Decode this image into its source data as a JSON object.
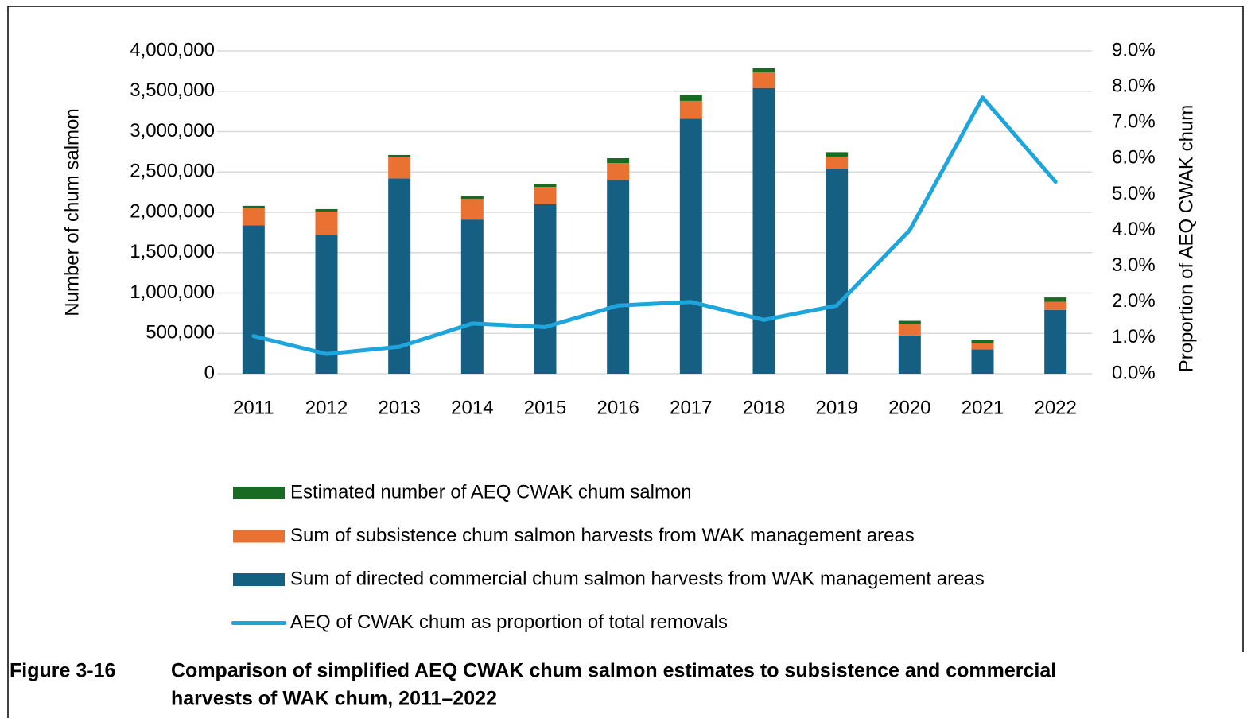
{
  "chart_data": {
    "type": "bar",
    "categories": [
      "2011",
      "2012",
      "2013",
      "2014",
      "2015",
      "2016",
      "2017",
      "2018",
      "2019",
      "2020",
      "2021",
      "2022"
    ],
    "series": [
      {
        "name": "Sum of directed commercial chum salmon harvests from WAK management areas",
        "color": "#156082",
        "values": [
          1840000,
          1720000,
          2420000,
          1910000,
          2100000,
          2400000,
          3160000,
          3540000,
          2540000,
          475000,
          300000,
          790000
        ]
      },
      {
        "name": "Sum of subsistence chum salmon harvests from WAK management areas",
        "color": "#e97132",
        "values": [
          210000,
          290000,
          260000,
          255000,
          215000,
          210000,
          220000,
          195000,
          150000,
          140000,
          80000,
          100000
        ]
      },
      {
        "name": "Estimated number of AEQ CWAK chum salmon",
        "color": "#196b24",
        "values": [
          30000,
          30000,
          30000,
          35000,
          40000,
          60000,
          75000,
          50000,
          55000,
          40000,
          35000,
          55000
        ]
      },
      {
        "name": "AEQ of CWAK chum as proportion of total removals",
        "color": "#1ea5dc",
        "type": "line",
        "axis": "y2",
        "values": [
          1.05,
          0.55,
          0.75,
          1.4,
          1.3,
          1.9,
          2.0,
          1.5,
          1.9,
          4.0,
          7.7,
          5.35
        ]
      }
    ],
    "stacked": true,
    "y_label": "Number of chum salmon",
    "y2_label": "Proportion of AEQ CWAK chum",
    "ylim": [
      0,
      4000000
    ],
    "yticks": [
      0,
      {
        "value": 500000,
        "label": "500,000"
      },
      {
        "value": 1000000,
        "label": "1,000,000"
      },
      {
        "value": 1500000,
        "label": "1,500,000"
      },
      {
        "value": 2000000,
        "label": "2,000,000"
      },
      {
        "value": 2500000,
        "label": "2,500,000"
      },
      {
        "value": 3000000,
        "label": "3,000,000"
      },
      {
        "value": 3500000,
        "label": "3,500,000"
      },
      {
        "value": 4000000,
        "label": "4,000,000"
      }
    ],
    "y2lim": [
      0,
      9
    ],
    "y2ticks": [
      {
        "value": 0,
        "label": "0.0%"
      },
      {
        "value": 1,
        "label": "1.0%"
      },
      {
        "value": 2,
        "label": "2.0%"
      },
      {
        "value": 3,
        "label": "3.0%"
      },
      {
        "value": 4,
        "label": "4.0%"
      },
      {
        "value": 5,
        "label": "5.0%"
      },
      {
        "value": 6,
        "label": "6.0%"
      },
      {
        "value": 7,
        "label": "7.0%"
      },
      {
        "value": 8,
        "label": "8.0%"
      },
      {
        "value": 9,
        "label": "9.0%"
      }
    ],
    "grid": true,
    "legend": "bottom",
    "figure_label": "Figure 3-16",
    "caption": [
      "Comparison of simplified AEQ CWAK chum salmon estimates to subsistence and commercial",
      "harvests of WAK chum, 2011–2022"
    ]
  }
}
